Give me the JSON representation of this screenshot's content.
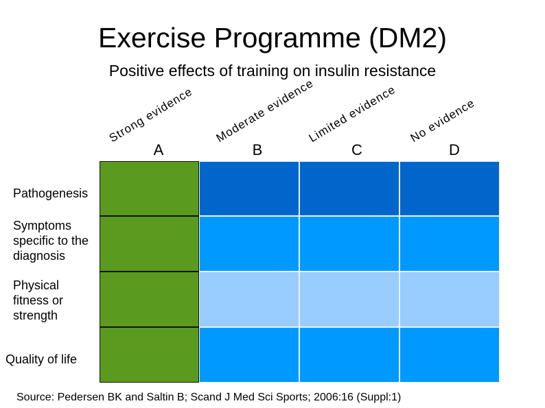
{
  "title": "Exercise Programme (DM2)",
  "subtitle": "Positive effects of training on insulin resistance",
  "columns": [
    {
      "letter": "A",
      "evidence": "Strong evidence",
      "color": "#5a9a1e"
    },
    {
      "letter": "B",
      "evidence": "Moderate evidence"
    },
    {
      "letter": "C",
      "evidence": "Limited evidence"
    },
    {
      "letter": "D",
      "evidence": "No evidence"
    }
  ],
  "rows": [
    {
      "label": "Pathogenesis",
      "color": "#0066cc"
    },
    {
      "label": "Symptoms specific to the diagnosis",
      "color": "#0099ff"
    },
    {
      "label": "Physical fitness or strength",
      "color": "#99ccff"
    },
    {
      "label": "Quality of life",
      "color": "#0099ff"
    }
  ],
  "source": "Source: Pedersen BK and Saltin B; Scand  J  Med Sci Sports; 2006:16 (Suppl:1)"
}
